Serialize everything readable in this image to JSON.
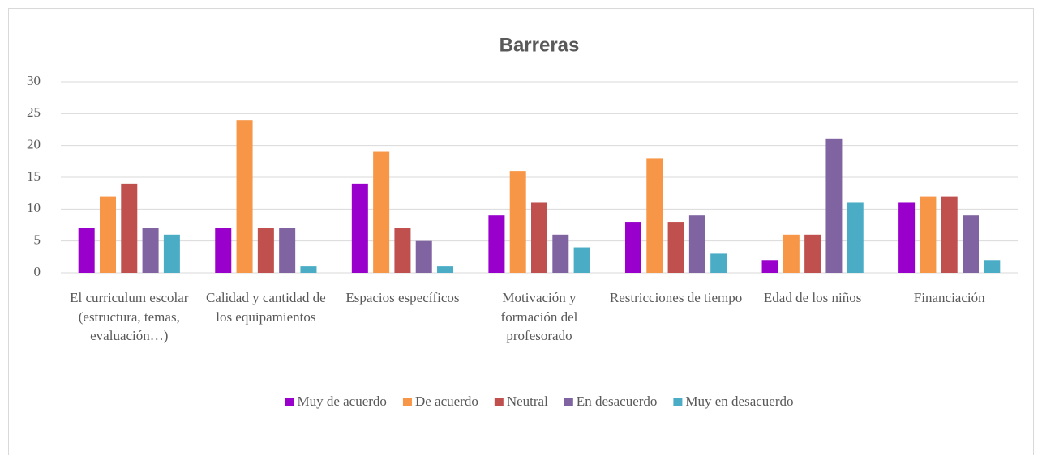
{
  "chart_data": {
    "type": "bar",
    "title": "Barreras",
    "categories": [
      "El curriculum escolar (estructura, temas, evaluación…)",
      "Calidad y cantidad de los equipamientos",
      "Espacios específicos",
      "Motivación y formación del profesorado",
      "Restricciones de tiempo",
      "Edad de los niños",
      "Financiación"
    ],
    "series": [
      {
        "name": "Muy de acuerdo",
        "color": "#9900cc",
        "values": [
          7,
          7,
          14,
          9,
          8,
          2,
          11
        ]
      },
      {
        "name": "De acuerdo",
        "color": "#f79646",
        "values": [
          12,
          24,
          19,
          16,
          18,
          6,
          12
        ]
      },
      {
        "name": "Neutral",
        "color": "#c0504d",
        "values": [
          14,
          7,
          7,
          11,
          8,
          6,
          12
        ]
      },
      {
        "name": "En desacuerdo",
        "color": "#8064a2",
        "values": [
          7,
          7,
          5,
          6,
          9,
          21,
          9
        ]
      },
      {
        "name": "Muy en desacuerdo",
        "color": "#4bacc6",
        "values": [
          6,
          1,
          1,
          4,
          3,
          11,
          2
        ]
      }
    ],
    "ylim": [
      0,
      30
    ],
    "yticks": [
      0,
      5,
      10,
      15,
      20,
      25,
      30
    ],
    "grid": true,
    "legend": "bottom"
  }
}
